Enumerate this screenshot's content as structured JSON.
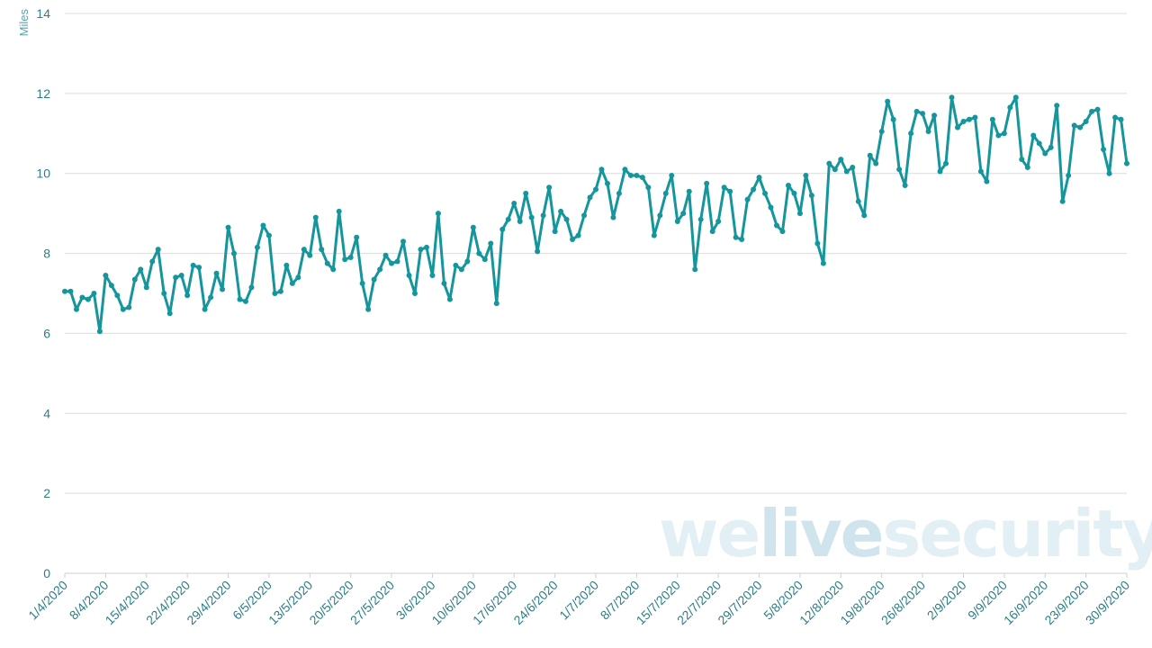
{
  "chart_data": {
    "type": "line",
    "title": "",
    "xlabel": "",
    "ylabel": "Miles",
    "ylim": [
      0,
      14
    ],
    "yticks": [
      0,
      2,
      4,
      6,
      8,
      10,
      12,
      14
    ],
    "grid": true,
    "legend": "none",
    "x_tick_labels": [
      "1/4/2020",
      "8/4/2020",
      "15/4/2020",
      "22/4/2020",
      "29/4/2020",
      "6/5/2020",
      "13/5/2020",
      "20/5/2020",
      "27/5/2020",
      "3/6/2020",
      "10/6/2020",
      "17/6/2020",
      "24/6/2020",
      "1/7/2020",
      "8/7/2020",
      "15/7/2020",
      "22/7/2020",
      "29/7/2020",
      "5/8/2020",
      "12/8/2020",
      "19/8/2020",
      "26/8/2020",
      "2/9/2020",
      "9/9/2020",
      "16/9/2020",
      "23/9/2020",
      "30/9/2020"
    ],
    "x_range": [
      "1/4/2020",
      "30/9/2020"
    ],
    "series": [
      {
        "color": "#15959c",
        "values": [
          7.05,
          7.05,
          6.6,
          6.9,
          6.85,
          7.0,
          6.05,
          7.45,
          7.2,
          6.95,
          6.6,
          6.65,
          7.35,
          7.6,
          7.15,
          7.8,
          8.1,
          7.0,
          6.5,
          7.4,
          7.45,
          6.95,
          7.7,
          7.65,
          6.6,
          6.9,
          7.5,
          7.1,
          8.65,
          8.0,
          6.85,
          6.8,
          7.15,
          8.15,
          8.7,
          8.45,
          7.0,
          7.05,
          7.7,
          7.25,
          7.4,
          8.1,
          7.95,
          8.9,
          8.1,
          7.75,
          7.6,
          9.05,
          7.85,
          7.9,
          8.4,
          7.25,
          6.6,
          7.35,
          7.6,
          7.95,
          7.75,
          7.8,
          8.3,
          7.45,
          7.0,
          8.1,
          8.15,
          7.45,
          9.0,
          7.25,
          6.85,
          7.7,
          7.6,
          7.8,
          8.65,
          8.0,
          7.85,
          8.25,
          6.75,
          8.6,
          8.85,
          9.25,
          8.8,
          9.5,
          8.9,
          8.05,
          8.95,
          9.65,
          8.55,
          9.05,
          8.85,
          8.35,
          8.45,
          8.95,
          9.4,
          9.6,
          10.1,
          9.75,
          8.9,
          9.5,
          10.1,
          9.95,
          9.95,
          9.9,
          9.65,
          8.45,
          8.95,
          9.5,
          9.95,
          8.8,
          9.0,
          9.55,
          7.6,
          8.85,
          9.75,
          8.55,
          8.8,
          9.65,
          9.55,
          8.4,
          8.35,
          9.35,
          9.6,
          9.9,
          9.5,
          9.15,
          8.7,
          8.55,
          9.7,
          9.5,
          9.0,
          9.95,
          9.45,
          8.25,
          7.75,
          10.25,
          10.1,
          10.35,
          10.05,
          10.15,
          9.3,
          8.95,
          10.45,
          10.25,
          11.05,
          11.8,
          11.35,
          10.1,
          9.7,
          11.0,
          11.55,
          11.5,
          11.05,
          11.45,
          10.05,
          10.25,
          11.9,
          11.15,
          11.3,
          11.35,
          11.4,
          10.05,
          9.8,
          11.35,
          10.95,
          11.0,
          11.65,
          11.9,
          10.35,
          10.15,
          10.95,
          10.75,
          10.5,
          10.65,
          11.7,
          9.3,
          9.95,
          11.2,
          11.15,
          11.3,
          11.55,
          11.6,
          10.6,
          10.0,
          11.4,
          11.35,
          10.25
        ]
      }
    ]
  },
  "watermark": {
    "part1": "we",
    "part2": "live",
    "part3": "security",
    "color_main": "#e2eff5",
    "color_accent": "#cfe4ed"
  }
}
